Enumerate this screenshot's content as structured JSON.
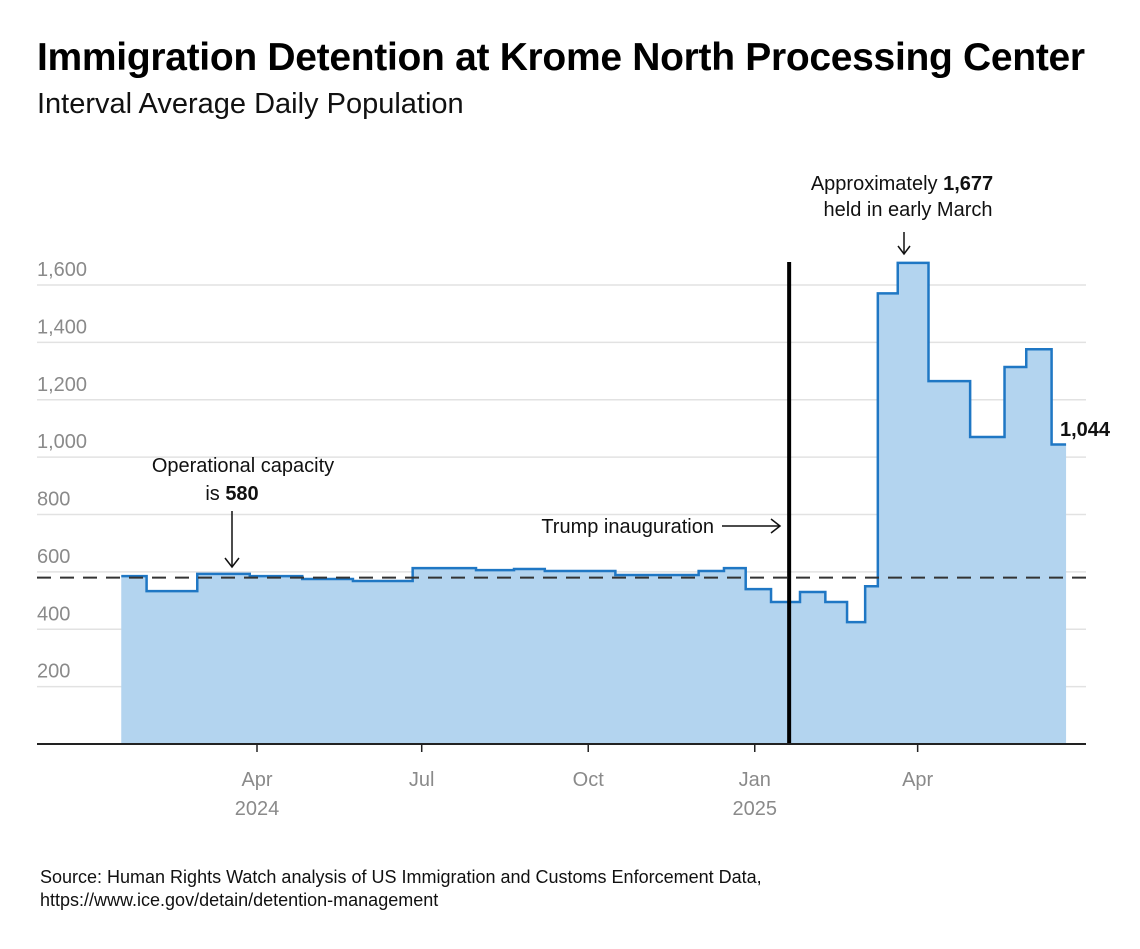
{
  "title": "Immigration Detention at Krome North Processing Center",
  "subtitle": "Interval Average Daily Population",
  "source_line1": "Source: Human Rights Watch analysis of US Immigration and Customs Enforcement Data,",
  "source_line2": "https://www.ice.gov/detain/detention-management",
  "chart_data": {
    "type": "area",
    "step": true,
    "title": "Immigration Detention at Krome North Processing Center",
    "subtitle": "Interval Average Daily Population",
    "xlabel": "",
    "ylabel": "",
    "ylim": [
      0,
      1680
    ],
    "grid": true,
    "y_ticks": [
      200,
      400,
      600,
      800,
      1000,
      1200,
      1400,
      1600
    ],
    "y_tick_labels": [
      "200",
      "400",
      "600",
      "800",
      "1,000",
      "1,200",
      "1,400",
      "1,600"
    ],
    "x_ticks": [
      {
        "date": "2024-04-01",
        "label": "Apr",
        "year": "2024"
      },
      {
        "date": "2024-07-01",
        "label": "Jul",
        "year": ""
      },
      {
        "date": "2024-10-01",
        "label": "Oct",
        "year": ""
      },
      {
        "date": "2025-01-01",
        "label": "Jan",
        "year": "2025"
      },
      {
        "date": "2025-04-01",
        "label": "Apr",
        "year": ""
      }
    ],
    "series": [
      {
        "color": "#1f77c4",
        "fill": "#b3d4ef",
        "points": [
          {
            "date": "2024-01-17",
            "value": 585
          },
          {
            "date": "2024-01-31",
            "value": 533
          },
          {
            "date": "2024-02-28",
            "value": 593
          },
          {
            "date": "2024-03-28",
            "value": 585
          },
          {
            "date": "2024-04-26",
            "value": 575
          },
          {
            "date": "2024-05-24",
            "value": 568
          },
          {
            "date": "2024-06-26",
            "value": 613
          },
          {
            "date": "2024-07-31",
            "value": 606
          },
          {
            "date": "2024-08-21",
            "value": 610
          },
          {
            "date": "2024-09-07",
            "value": 603
          },
          {
            "date": "2024-10-16",
            "value": 589
          },
          {
            "date": "2024-12-01",
            "value": 603
          },
          {
            "date": "2024-12-15",
            "value": 613
          },
          {
            "date": "2024-12-27",
            "value": 540
          },
          {
            "date": "2025-01-10",
            "value": 495
          },
          {
            "date": "2025-01-26",
            "value": 530
          },
          {
            "date": "2025-02-09",
            "value": 495
          },
          {
            "date": "2025-02-21",
            "value": 425
          },
          {
            "date": "2025-03-03",
            "value": 550
          },
          {
            "date": "2025-03-10",
            "value": 1571
          },
          {
            "date": "2025-03-21",
            "value": 1677
          },
          {
            "date": "2025-04-07",
            "value": 1265
          },
          {
            "date": "2025-04-30",
            "value": 1070
          },
          {
            "date": "2025-05-19",
            "value": 1314
          },
          {
            "date": "2025-05-31",
            "value": 1376
          },
          {
            "date": "2025-06-14",
            "value": 1044
          }
        ],
        "end_date": "2025-06-22"
      }
    ],
    "capacity_line": {
      "value": 580,
      "style": "dashed"
    },
    "inauguration_line": {
      "date": "2025-01-20"
    },
    "annotations": {
      "capacity_line1": "Operational capacity",
      "capacity_line2_prefix": "is ",
      "capacity_value": "580",
      "inauguration": "Trump inauguration",
      "peak_line1_prefix": "Approximately ",
      "peak_value": "1,677",
      "peak_line2": "held in early March",
      "last_value": "1,044"
    }
  }
}
